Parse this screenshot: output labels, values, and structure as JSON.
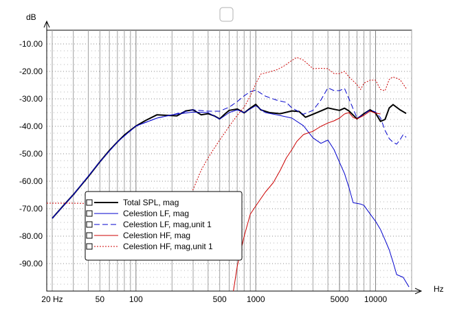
{
  "chart_data": {
    "type": "line",
    "ylabel": "dB",
    "xlabel": "Hz",
    "x_scale": "log",
    "xlim": [
      18,
      20000
    ],
    "ylim": [
      -100,
      -5
    ],
    "y_ticks": [
      -10,
      -20,
      -30,
      -40,
      -50,
      -60,
      -70,
      -80,
      -90
    ],
    "y_tick_labels": [
      "-10.00",
      "-20.00",
      "-30.00",
      "-40.00",
      "-50.00",
      "-60.00",
      "-70.00",
      "-80.00",
      "-90.00"
    ],
    "x_ticks": [
      20,
      50,
      100,
      500,
      1000,
      5000,
      10000
    ],
    "x_tick_labels": [
      "20 Hz",
      "50",
      "100",
      "500",
      "1000",
      "5000",
      "10000"
    ],
    "grid": true,
    "legend_position": "bottom-left",
    "series": [
      {
        "name": "Total SPL, mag",
        "color": "#000000",
        "dash": "solid",
        "points": [
          [
            20,
            -73.5
          ],
          [
            25,
            -68.7
          ],
          [
            30,
            -64.9
          ],
          [
            40,
            -58.3
          ],
          [
            50,
            -52.9
          ],
          [
            60,
            -48.8
          ],
          [
            70,
            -45.7
          ],
          [
            80,
            -43.2
          ],
          [
            100,
            -39.9
          ],
          [
            120,
            -37.9
          ],
          [
            150,
            -35.8
          ],
          [
            180,
            -36.0
          ],
          [
            220,
            -36.2
          ],
          [
            260,
            -34.4
          ],
          [
            300,
            -34.0
          ],
          [
            350,
            -35.8
          ],
          [
            400,
            -35.4
          ],
          [
            450,
            -36.2
          ],
          [
            500,
            -37.3
          ],
          [
            550,
            -35.6
          ],
          [
            600,
            -34.2
          ],
          [
            700,
            -33.7
          ],
          [
            800,
            -35.1
          ],
          [
            900,
            -33.4
          ],
          [
            1000,
            -32.0
          ],
          [
            1100,
            -34.0
          ],
          [
            1300,
            -35.0
          ],
          [
            1600,
            -35.4
          ],
          [
            2000,
            -34.4
          ],
          [
            2300,
            -34.6
          ],
          [
            2600,
            -36.7
          ],
          [
            3000,
            -35.6
          ],
          [
            3500,
            -34.4
          ],
          [
            4000,
            -33.3
          ],
          [
            4500,
            -33.8
          ],
          [
            5000,
            -34.2
          ],
          [
            5500,
            -33.4
          ],
          [
            6000,
            -34.4
          ],
          [
            7000,
            -37.3
          ],
          [
            8000,
            -35.4
          ],
          [
            9000,
            -34.0
          ],
          [
            10000,
            -35.2
          ],
          [
            11000,
            -38.2
          ],
          [
            12000,
            -37.5
          ],
          [
            13000,
            -33.3
          ],
          [
            14000,
            -32.1
          ],
          [
            16000,
            -34.0
          ],
          [
            18000,
            -35.3
          ]
        ]
      },
      {
        "name": "Celestion LF, mag",
        "color": "#0000cc",
        "dash": "solid",
        "points": [
          [
            20,
            -73.5
          ],
          [
            30,
            -64.9
          ],
          [
            50,
            -52.9
          ],
          [
            70,
            -45.7
          ],
          [
            100,
            -39.9
          ],
          [
            150,
            -37.0
          ],
          [
            200,
            -35.8
          ],
          [
            300,
            -34.8
          ],
          [
            400,
            -35.0
          ],
          [
            500,
            -37.4
          ],
          [
            600,
            -35.0
          ],
          [
            700,
            -34.0
          ],
          [
            800,
            -35.0
          ],
          [
            1000,
            -32.5
          ],
          [
            1200,
            -35.0
          ],
          [
            1500,
            -35.8
          ],
          [
            2000,
            -37.0
          ],
          [
            2500,
            -39.8
          ],
          [
            3000,
            -44.2
          ],
          [
            3500,
            -46.2
          ],
          [
            4000,
            -45.0
          ],
          [
            4500,
            -48.5
          ],
          [
            5000,
            -53.1
          ],
          [
            5500,
            -57.2
          ],
          [
            6000,
            -62.3
          ],
          [
            6500,
            -67.8
          ],
          [
            7500,
            -68.3
          ],
          [
            8000,
            -68.8
          ],
          [
            9000,
            -71.9
          ],
          [
            10000,
            -74.6
          ],
          [
            11000,
            -77.6
          ],
          [
            12000,
            -81.4
          ],
          [
            13000,
            -85.0
          ],
          [
            14000,
            -89.5
          ],
          [
            15000,
            -94.0
          ],
          [
            17000,
            -95.0
          ],
          [
            19000,
            -98.5
          ]
        ]
      },
      {
        "name": "Celestion LF, mag,unit 1",
        "color": "#0000cc",
        "dash": "dashed",
        "points": [
          [
            20,
            -73.5
          ],
          [
            30,
            -64.9
          ],
          [
            50,
            -52.9
          ],
          [
            70,
            -45.7
          ],
          [
            100,
            -39.9
          ],
          [
            150,
            -37.0
          ],
          [
            200,
            -35.8
          ],
          [
            300,
            -34.0
          ],
          [
            400,
            -34.5
          ],
          [
            500,
            -34.5
          ],
          [
            600,
            -33.0
          ],
          [
            700,
            -31.0
          ],
          [
            800,
            -28.9
          ],
          [
            900,
            -27.4
          ],
          [
            1000,
            -26.8
          ],
          [
            1200,
            -29.0
          ],
          [
            1500,
            -30.5
          ],
          [
            1800,
            -31.3
          ],
          [
            2000,
            -33.3
          ],
          [
            2500,
            -35.6
          ],
          [
            3000,
            -34.2
          ],
          [
            3500,
            -30.4
          ],
          [
            4000,
            -26.0
          ],
          [
            4500,
            -27.0
          ],
          [
            5000,
            -27.0
          ],
          [
            5500,
            -26.2
          ],
          [
            6000,
            -30.0
          ],
          [
            7000,
            -37.0
          ],
          [
            8000,
            -35.6
          ],
          [
            9000,
            -34.0
          ],
          [
            10000,
            -34.8
          ],
          [
            11000,
            -36.9
          ],
          [
            12000,
            -41.5
          ],
          [
            13000,
            -44.5
          ],
          [
            14000,
            -45.8
          ],
          [
            15000,
            -46.5
          ],
          [
            16000,
            -44.9
          ],
          [
            17000,
            -43.0
          ],
          [
            18000,
            -44.0
          ]
        ]
      },
      {
        "name": "Celestion HF, mag",
        "color": "#cc0000",
        "dash": "solid",
        "points": [
          [
            650,
            -100
          ],
          [
            700,
            -91.0
          ],
          [
            800,
            -80.0
          ],
          [
            900,
            -72.0
          ],
          [
            1000,
            -69.0
          ],
          [
            1200,
            -64.0
          ],
          [
            1400,
            -60.5
          ],
          [
            1600,
            -56.0
          ],
          [
            1800,
            -51.5
          ],
          [
            2000,
            -48.5
          ],
          [
            2200,
            -45.5
          ],
          [
            2500,
            -43.0
          ],
          [
            3000,
            -41.8
          ],
          [
            3500,
            -40.0
          ],
          [
            4000,
            -38.8
          ],
          [
            4500,
            -38.0
          ],
          [
            5000,
            -37.0
          ],
          [
            5500,
            -35.5
          ],
          [
            6000,
            -35.0
          ],
          [
            6500,
            -36.8
          ],
          [
            7000,
            -37.3
          ],
          [
            8000,
            -36.0
          ],
          [
            9000,
            -34.5
          ],
          [
            10000,
            -35.2
          ],
          [
            11000,
            -35.5
          ]
        ]
      },
      {
        "name": "Celestion HF, mag,unit 1",
        "color": "#cc0000",
        "dash": "dotted",
        "points": [
          [
            18,
            -68.0
          ],
          [
            24,
            -68.0
          ],
          [
            28,
            -68.0
          ],
          [
            250,
            -68.5
          ],
          [
            300,
            -63.0
          ],
          [
            350,
            -56.0
          ],
          [
            400,
            -51.5
          ],
          [
            450,
            -48.0
          ],
          [
            500,
            -45.0
          ],
          [
            600,
            -40.0
          ],
          [
            700,
            -36.0
          ],
          [
            800,
            -33.0
          ],
          [
            900,
            -29.0
          ],
          [
            1000,
            -24.5
          ],
          [
            1100,
            -21.0
          ],
          [
            1300,
            -20.2
          ],
          [
            1500,
            -19.4
          ],
          [
            1700,
            -18.2
          ],
          [
            2000,
            -16.0
          ],
          [
            2200,
            -14.9
          ],
          [
            2500,
            -15.9
          ],
          [
            3000,
            -19.0
          ],
          [
            3500,
            -18.9
          ],
          [
            4000,
            -19.0
          ],
          [
            4500,
            -20.8
          ],
          [
            5000,
            -20.8
          ],
          [
            5500,
            -20.0
          ],
          [
            6000,
            -22.0
          ],
          [
            7000,
            -24.8
          ],
          [
            7500,
            -26.6
          ],
          [
            8000,
            -24.3
          ],
          [
            9000,
            -23.2
          ],
          [
            10000,
            -23.2
          ],
          [
            11000,
            -26.6
          ],
          [
            12000,
            -27.0
          ],
          [
            13000,
            -22.9
          ],
          [
            14000,
            -22.0
          ],
          [
            16000,
            -23.0
          ],
          [
            18000,
            -26.2
          ]
        ]
      }
    ]
  }
}
